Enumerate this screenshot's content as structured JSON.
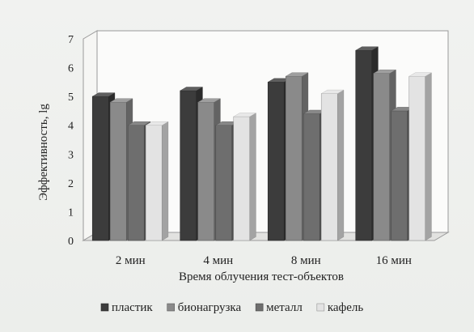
{
  "chart_data": {
    "type": "bar",
    "style": "3d-clustered-column",
    "title": "",
    "xlabel": "Время облучения тест-объектов",
    "ylabel": "Эффективность, lg",
    "categories": [
      "2 мин",
      "4 мин",
      "8 мин",
      "16 мин"
    ],
    "ylim": [
      0,
      7
    ],
    "yticks": [
      "0",
      "1",
      "2",
      "3",
      "4",
      "5",
      "6",
      "7"
    ],
    "grid": false,
    "legend_position": "bottom",
    "series": [
      {
        "name": "пластик",
        "color": "#3c3c3c",
        "values": [
          5.0,
          5.2,
          5.5,
          6.6
        ]
      },
      {
        "name": "бионагрузка",
        "color": "#8a8a8a",
        "values": [
          4.8,
          4.8,
          5.7,
          5.8
        ]
      },
      {
        "name": "металл",
        "color": "#6e6e6e",
        "values": [
          4.0,
          4.0,
          4.4,
          4.5
        ]
      },
      {
        "name": "кафель",
        "color": "#e3e3e3",
        "values": [
          4.0,
          4.3,
          5.1,
          5.7
        ]
      }
    ]
  }
}
